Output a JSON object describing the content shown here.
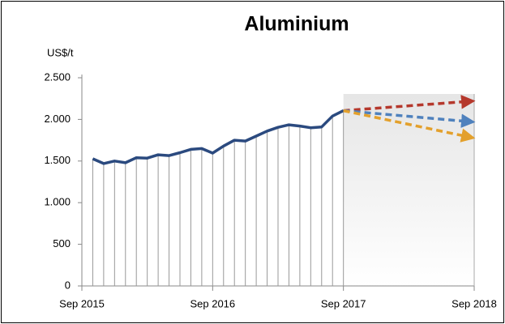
{
  "chart_data": {
    "type": "line",
    "title": "Aluminium",
    "y_label": "US$/t",
    "categories": [
      "Sep 2015",
      null,
      null,
      null,
      null,
      null,
      null,
      null,
      null,
      null,
      null,
      null,
      "Sep 2016",
      null,
      null,
      null,
      null,
      null,
      null,
      null,
      null,
      null,
      null,
      null,
      "Sep 2017",
      null,
      null,
      null,
      null,
      null,
      null,
      null,
      null,
      null,
      null,
      null,
      "Sep 2018"
    ],
    "series": [
      {
        "color": "#2b4a7f",
        "values": [
          null,
          1527,
          1470,
          1500,
          1480,
          1540,
          1535,
          1575,
          1565,
          1600,
          1640,
          1650,
          1595,
          1680,
          1750,
          1740,
          1800,
          1860,
          1905,
          1935,
          1920,
          1900,
          1910,
          2040,
          2105,
          null,
          null,
          null,
          null,
          null,
          null,
          null,
          null,
          null,
          null,
          null,
          null
        ]
      }
    ],
    "forecasts": [
      {
        "color": "#b5382c",
        "value": 2220
      },
      {
        "color": "#4f81bd",
        "value": 1970
      },
      {
        "color": "#e3a02c",
        "value": 1780
      }
    ],
    "ylim": [
      0,
      2500
    ],
    "yticks": [
      0,
      500,
      {
        "value": 1000,
        "label": "1.000"
      },
      {
        "value": 1500,
        "label": "1.500"
      },
      {
        "value": 2000,
        "label": "2.000"
      },
      {
        "value": 2500,
        "label": "2.500"
      }
    ]
  }
}
